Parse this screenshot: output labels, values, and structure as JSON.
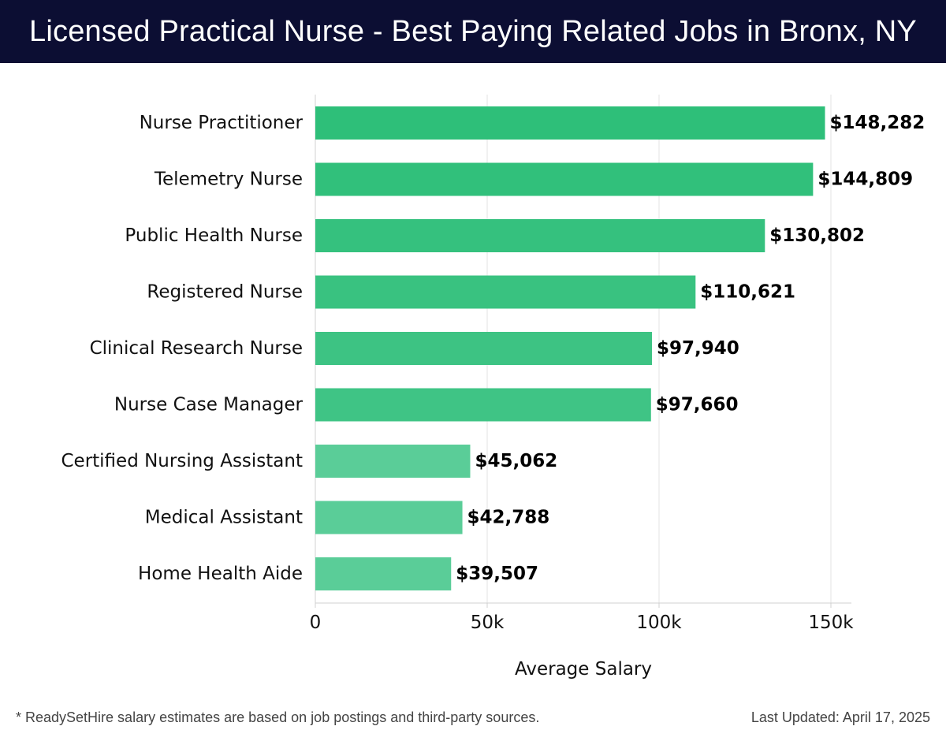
{
  "header": {
    "title": "Licensed Practical Nurse - Best Paying Related Jobs in Bronx, NY"
  },
  "chart_data": {
    "type": "bar",
    "orientation": "horizontal",
    "title": "Licensed Practical Nurse - Best Paying Related Jobs in Bronx, NY",
    "xlabel": "Average Salary",
    "ylabel": "",
    "xlim": [
      0,
      155000
    ],
    "xticks": [
      {
        "value": 0,
        "label": "0"
      },
      {
        "value": 50000,
        "label": "50k"
      },
      {
        "value": 100000,
        "label": "100k"
      },
      {
        "value": 150000,
        "label": "150k"
      }
    ],
    "grid": true,
    "categories": [
      "Nurse Practitioner",
      "Telemetry Nurse",
      "Public Health Nurse",
      "Registered Nurse",
      "Clinical Research Nurse",
      "Nurse Case Manager",
      "Certified Nursing Assistant",
      "Medical Assistant",
      "Home Health Aide"
    ],
    "values": [
      148282,
      144809,
      130802,
      110621,
      97940,
      97660,
      45062,
      42788,
      39507
    ],
    "value_labels": [
      "$148,282",
      "$144,809",
      "$130,802",
      "$110,621",
      "$97,940",
      "$97,660",
      "$45,062",
      "$42,788",
      "$39,507"
    ],
    "bar_colors": [
      "#2ebf79",
      "#31c07b",
      "#35c17e",
      "#39c280",
      "#3dc383",
      "#3fc485",
      "#5acd98",
      "#5acd98",
      "#5acd98"
    ]
  },
  "footer": {
    "note": "* ReadySetHire salary estimates are based on job postings and third-party sources.",
    "updated": "Last Updated: April 17, 2025"
  }
}
